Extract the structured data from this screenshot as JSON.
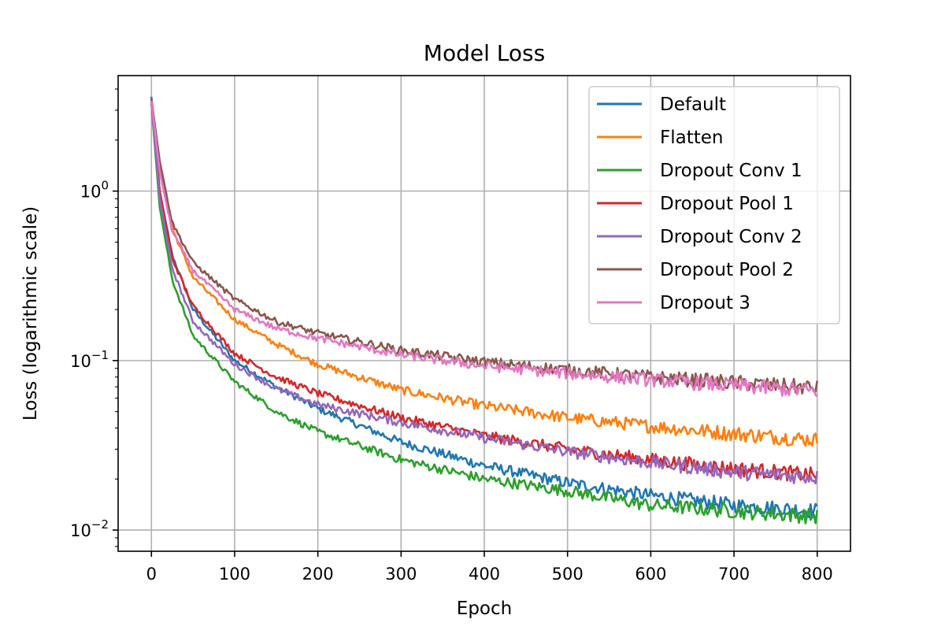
{
  "chart_data": {
    "type": "line",
    "title": "Model Loss",
    "xlabel": "Epoch",
    "ylabel": "Loss (logarithmic scale)",
    "yscale": "log",
    "xlim": [
      -40,
      840
    ],
    "ylim": [
      0.0075,
      4.8
    ],
    "xticks": [
      0,
      100,
      200,
      300,
      400,
      500,
      600,
      700,
      800
    ],
    "yticks": [
      {
        "value": 0.01,
        "base": "10",
        "exp": "−2"
      },
      {
        "value": 0.1,
        "base": "10",
        "exp": "−1"
      },
      {
        "value": 1,
        "base": "10",
        "exp": "0"
      }
    ],
    "grid": true,
    "legend_position": "upper right",
    "series": [
      {
        "name": "Default",
        "color": "#1f77b4",
        "x": [
          0,
          10,
          25,
          50,
          100,
          150,
          200,
          300,
          400,
          500,
          600,
          700,
          800
        ],
        "y": [
          3.6,
          1.0,
          0.42,
          0.2,
          0.1,
          0.07,
          0.052,
          0.033,
          0.024,
          0.019,
          0.016,
          0.014,
          0.013
        ]
      },
      {
        "name": "Flatten",
        "color": "#ff7f0e",
        "x": [
          0,
          10,
          25,
          50,
          100,
          150,
          200,
          300,
          400,
          500,
          600,
          700,
          800
        ],
        "y": [
          3.4,
          1.3,
          0.6,
          0.31,
          0.175,
          0.125,
          0.095,
          0.067,
          0.054,
          0.046,
          0.041,
          0.037,
          0.034
        ]
      },
      {
        "name": "Dropout Conv 1",
        "color": "#2ca02c",
        "x": [
          0,
          10,
          25,
          50,
          100,
          150,
          200,
          300,
          400,
          500,
          600,
          700,
          800
        ],
        "y": [
          3.3,
          0.8,
          0.3,
          0.14,
          0.075,
          0.05,
          0.038,
          0.026,
          0.02,
          0.017,
          0.014,
          0.013,
          0.012
        ]
      },
      {
        "name": "Dropout Pool 1",
        "color": "#d62728",
        "x": [
          0,
          10,
          25,
          50,
          100,
          150,
          200,
          300,
          400,
          500,
          600,
          700,
          800
        ],
        "y": [
          3.4,
          1.0,
          0.4,
          0.21,
          0.11,
          0.08,
          0.064,
          0.046,
          0.036,
          0.03,
          0.026,
          0.023,
          0.021
        ]
      },
      {
        "name": "Dropout Conv 2",
        "color": "#9467bd",
        "x": [
          0,
          10,
          25,
          50,
          100,
          150,
          200,
          300,
          400,
          500,
          600,
          700,
          800
        ],
        "y": [
          3.3,
          0.9,
          0.35,
          0.17,
          0.095,
          0.068,
          0.055,
          0.043,
          0.035,
          0.029,
          0.025,
          0.022,
          0.0205
        ]
      },
      {
        "name": "Dropout Pool 2",
        "color": "#8c564b",
        "x": [
          0,
          10,
          25,
          50,
          100,
          150,
          200,
          300,
          400,
          500,
          600,
          700,
          800
        ],
        "y": [
          3.5,
          1.5,
          0.65,
          0.38,
          0.23,
          0.17,
          0.145,
          0.115,
          0.098,
          0.088,
          0.08,
          0.074,
          0.069
        ]
      },
      {
        "name": "Dropout 3",
        "color": "#e377c2",
        "x": [
          0,
          10,
          25,
          50,
          100,
          150,
          200,
          300,
          400,
          500,
          600,
          700,
          800
        ],
        "y": [
          3.4,
          1.3,
          0.58,
          0.34,
          0.2,
          0.155,
          0.135,
          0.108,
          0.093,
          0.084,
          0.077,
          0.071,
          0.066
        ]
      }
    ]
  }
}
